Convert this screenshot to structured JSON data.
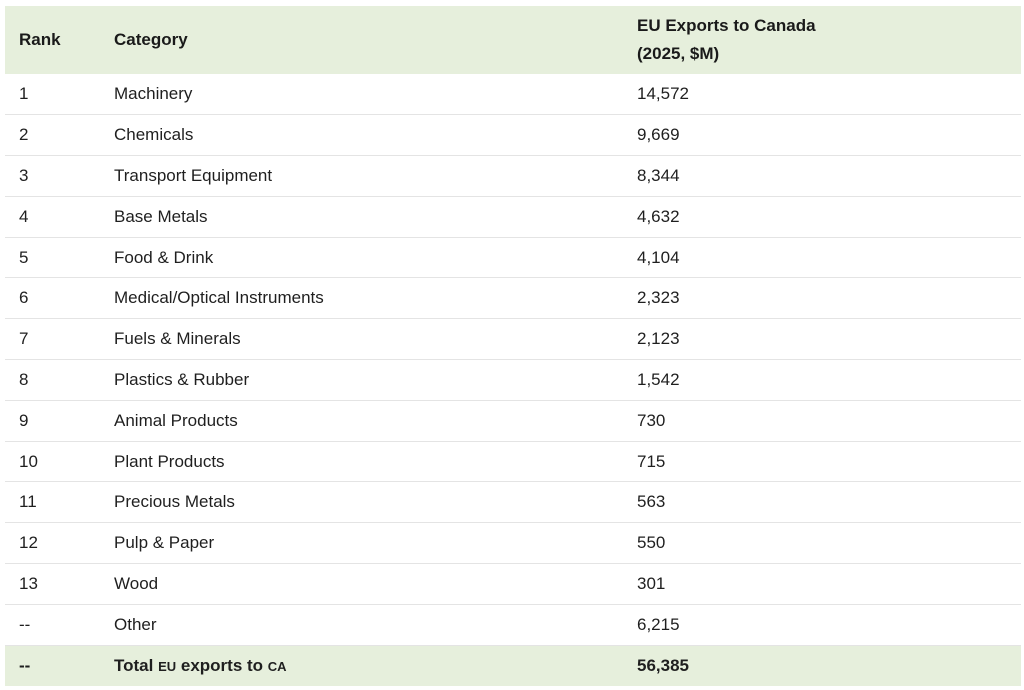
{
  "table": {
    "headers": {
      "rank": "Rank",
      "category": "Category",
      "value_line1": "EU Exports to Canada",
      "value_line2": "(2025, $M)"
    },
    "rows": [
      {
        "rank": "1",
        "category": "Machinery",
        "value": "14,572"
      },
      {
        "rank": "2",
        "category": "Chemicals",
        "value": "9,669"
      },
      {
        "rank": "3",
        "category": "Transport Equipment",
        "value": "8,344"
      },
      {
        "rank": "4",
        "category": "Base Metals",
        "value": "4,632"
      },
      {
        "rank": "5",
        "category": "Food & Drink",
        "value": "4,104"
      },
      {
        "rank": "6",
        "category": "Medical/Optical Instruments",
        "value": "2,323"
      },
      {
        "rank": "7",
        "category": "Fuels & Minerals",
        "value": "2,123"
      },
      {
        "rank": "8",
        "category": "Plastics & Rubber",
        "value": "1,542"
      },
      {
        "rank": "9",
        "category": "Animal Products",
        "value": "730"
      },
      {
        "rank": "10",
        "category": "Plant Products",
        "value": "715"
      },
      {
        "rank": "11",
        "category": "Precious Metals",
        "value": "563"
      },
      {
        "rank": "12",
        "category": "Pulp & Paper",
        "value": "550"
      },
      {
        "rank": "13",
        "category": "Wood",
        "value": "301"
      },
      {
        "rank": "--",
        "category": "Other",
        "value": "6,215"
      }
    ],
    "total": {
      "rank": "--",
      "label_part1": "Total ",
      "label_eu": "eu",
      "label_part2": " exports to ",
      "label_ca": "ca",
      "value": "56,385"
    }
  },
  "colors": {
    "header_bg": "#e6efdc",
    "row_divider": "#e4e4e4"
  }
}
